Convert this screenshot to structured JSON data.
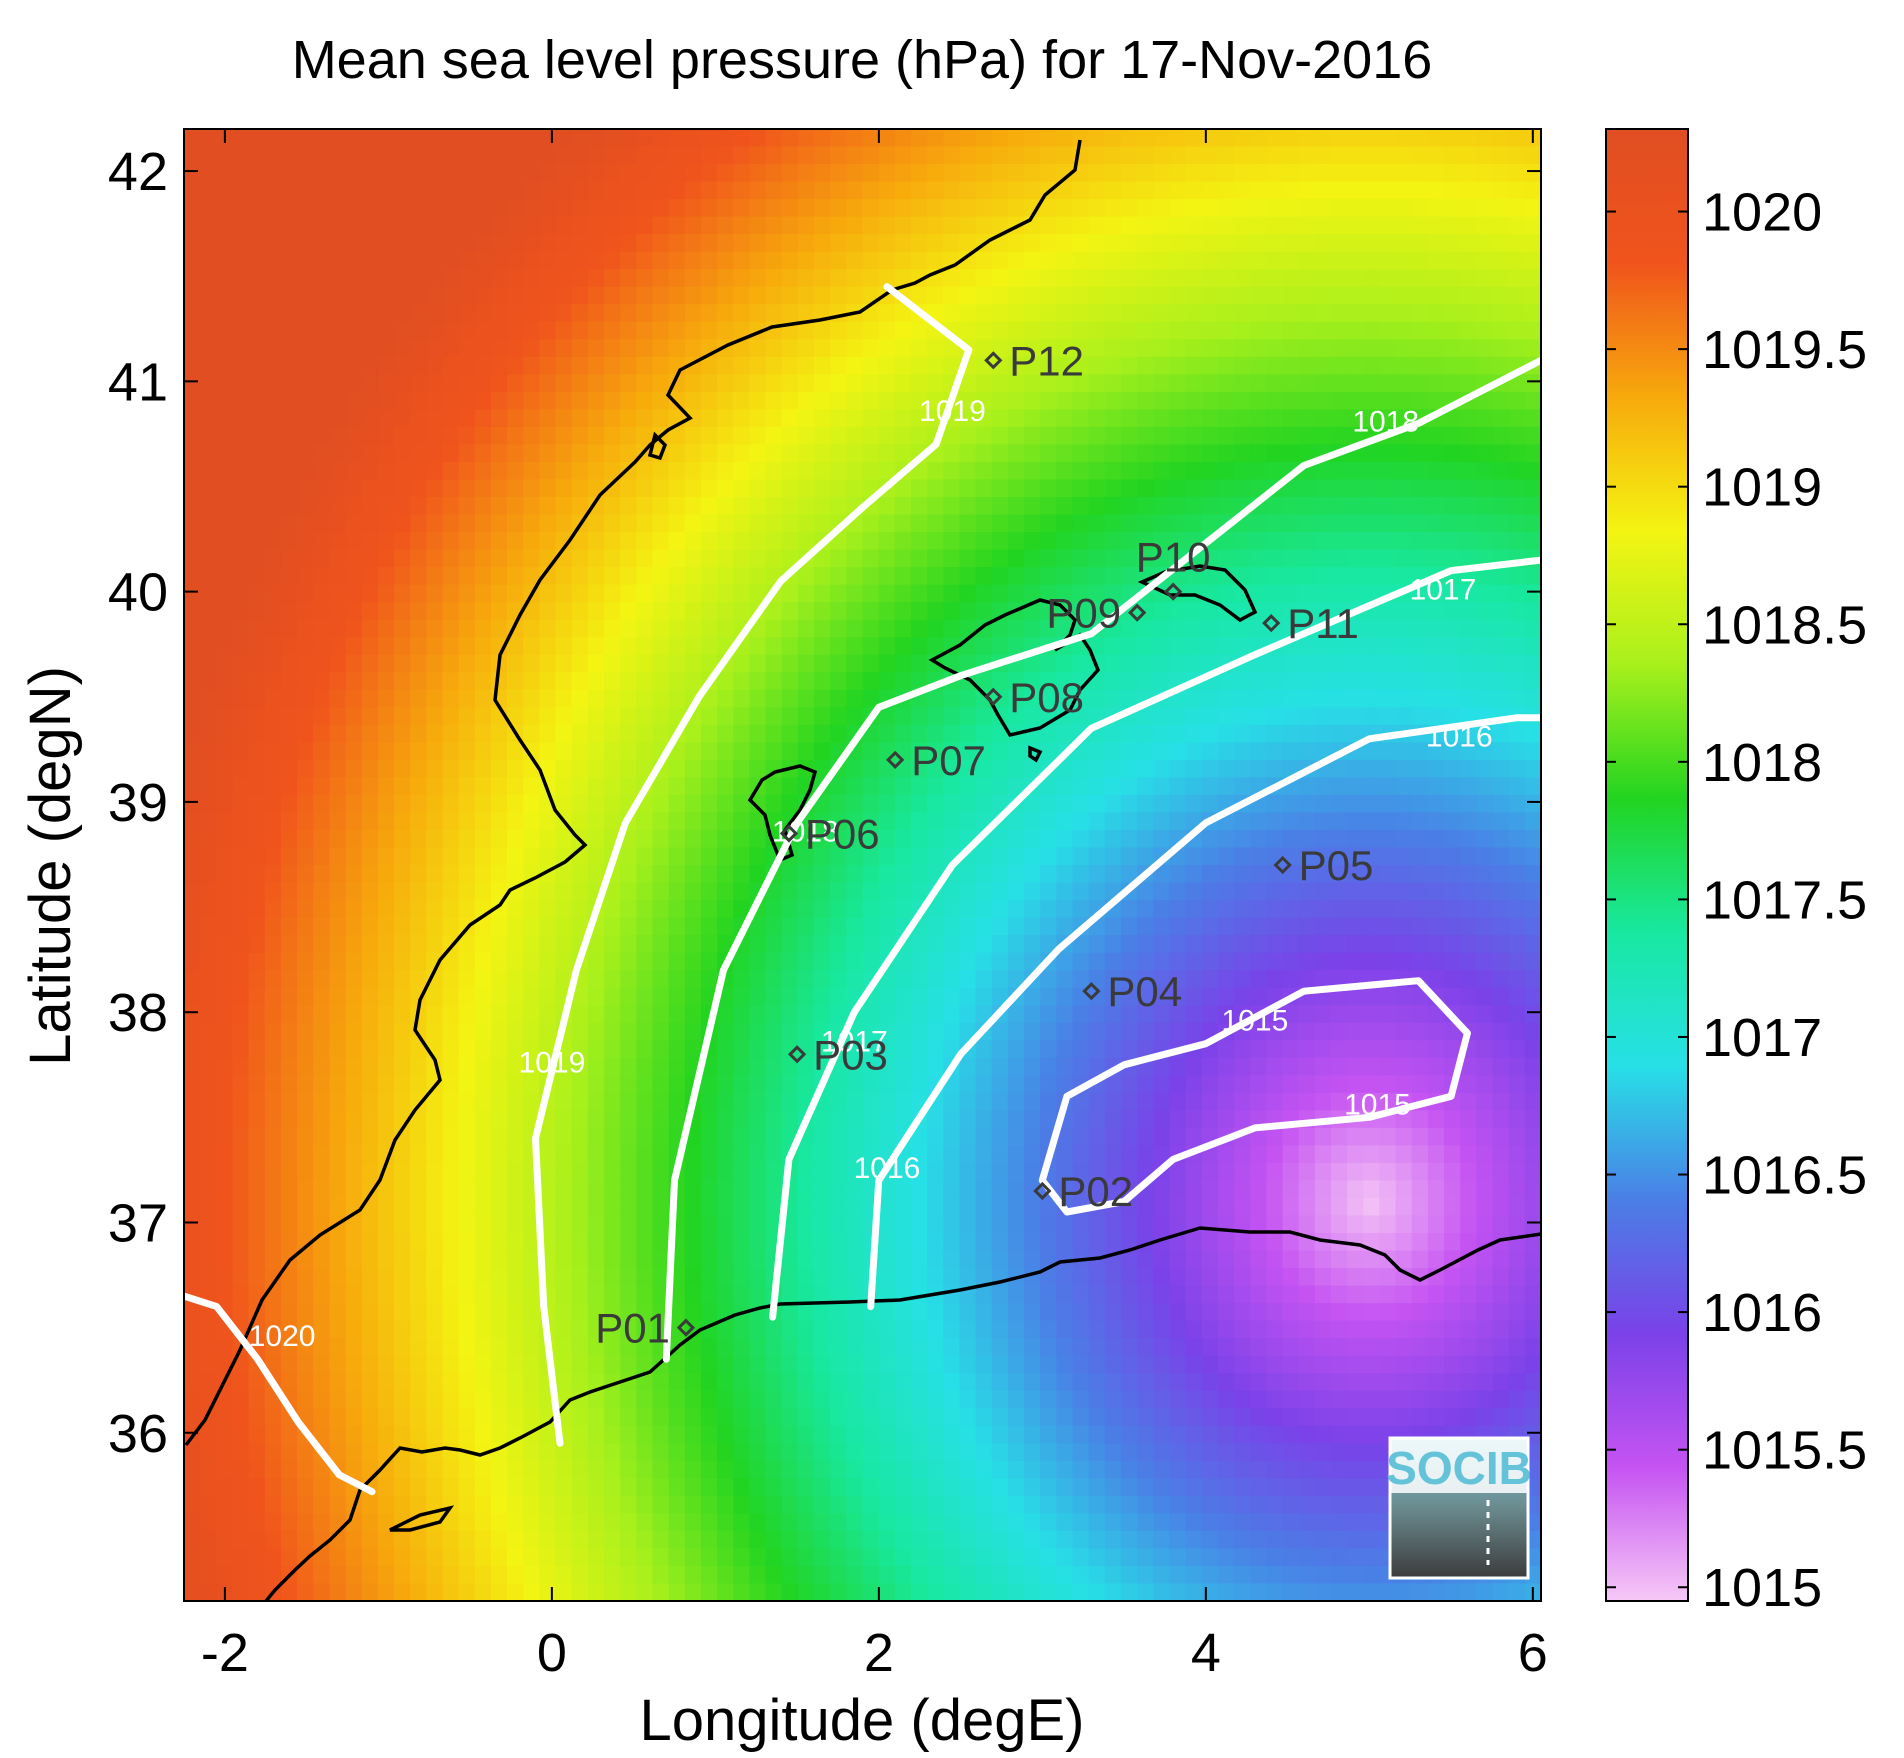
{
  "chart_data": {
    "type": "heatmap",
    "title": "Mean sea level pressure (hPa) for 17-Nov-2016",
    "xlabel": "Longitude (degE)",
    "ylabel": "Latitude (degN)",
    "xlim": [
      -2.25,
      6.05
    ],
    "ylim": [
      35.2,
      42.2
    ],
    "x_ticks": [
      -2,
      0,
      2,
      4,
      6
    ],
    "x_tick_labels": [
      "-2",
      "0",
      "2",
      "4",
      "6"
    ],
    "y_ticks": [
      36,
      37,
      38,
      39,
      40,
      41,
      42
    ],
    "y_tick_labels": [
      "36",
      "37",
      "38",
      "39",
      "40",
      "41",
      "42"
    ],
    "colorbar": {
      "min": 1014.95,
      "max": 1020.3,
      "ticks": [
        1015,
        1015.5,
        1016,
        1016.5,
        1017,
        1017.5,
        1018,
        1018.5,
        1019,
        1019.5,
        1020
      ],
      "tick_labels": [
        "1015",
        "1015.5",
        "1016",
        "1016.5",
        "1017",
        "1017.5",
        "1018",
        "1018.5",
        "1019",
        "1019.5",
        "1020"
      ],
      "colors": [
        "#f6c8f6",
        "#c553f2",
        "#7a42e8",
        "#4a7fe6",
        "#27e0e6",
        "#18e8a0",
        "#22d420",
        "#a8f01c",
        "#f4f412",
        "#f7a90c",
        "#f0541c",
        "#e04e22"
      ]
    },
    "contours": [
      {
        "level": 1020,
        "label": "1020",
        "points": [
          [
            -2.25,
            36.65
          ],
          [
            -2.05,
            36.6
          ],
          [
            -1.8,
            36.35
          ],
          [
            -1.55,
            36.05
          ],
          [
            -1.3,
            35.8
          ],
          [
            -1.1,
            35.72
          ]
        ],
        "label_at": [
          -1.65,
          36.45
        ]
      },
      {
        "level": 1019,
        "label": "1019",
        "points": [
          [
            2.05,
            41.45
          ],
          [
            2.3,
            41.3
          ],
          [
            2.55,
            41.15
          ],
          [
            2.35,
            40.7
          ],
          [
            1.9,
            40.4
          ],
          [
            1.4,
            40.05
          ],
          [
            0.9,
            39.5
          ],
          [
            0.45,
            38.9
          ],
          [
            0.15,
            38.2
          ],
          [
            -0.1,
            37.4
          ],
          [
            -0.05,
            36.6
          ],
          [
            0.05,
            35.95
          ]
        ],
        "label_at": [
          0.0,
          37.75
        ],
        "label2_at": [
          2.45,
          40.85
        ]
      },
      {
        "level": 1018,
        "label": "1018",
        "points": [
          [
            0.7,
            36.35
          ],
          [
            0.75,
            37.2
          ],
          [
            1.05,
            38.2
          ],
          [
            1.5,
            38.9
          ],
          [
            2.0,
            39.45
          ],
          [
            2.5,
            39.6
          ],
          [
            3.3,
            39.8
          ],
          [
            3.95,
            40.2
          ],
          [
            4.6,
            40.6
          ],
          [
            5.3,
            40.8
          ],
          [
            6.05,
            41.1
          ]
        ],
        "label_at": [
          5.1,
          40.8
        ],
        "label2_at": [
          1.55,
          38.85
        ]
      },
      {
        "level": 1017,
        "label": "1017",
        "points": [
          [
            1.35,
            36.55
          ],
          [
            1.45,
            37.3
          ],
          [
            1.85,
            38.0
          ],
          [
            2.45,
            38.7
          ],
          [
            3.3,
            39.35
          ],
          [
            4.3,
            39.7
          ],
          [
            5.5,
            40.1
          ],
          [
            6.05,
            40.15
          ]
        ],
        "label_at": [
          5.45,
          40.0
        ],
        "label2_at": [
          1.85,
          37.85
        ]
      },
      {
        "level": 1016,
        "label": "1016",
        "points": [
          [
            1.95,
            36.6
          ],
          [
            2.0,
            37.2
          ],
          [
            2.5,
            37.8
          ],
          [
            3.1,
            38.3
          ],
          [
            4.0,
            38.9
          ],
          [
            5.0,
            39.3
          ],
          [
            5.9,
            39.4
          ],
          [
            6.05,
            39.4
          ]
        ],
        "label_at": [
          5.55,
          39.3
        ],
        "label2_at": [
          2.05,
          37.25
        ]
      },
      {
        "level": 1015,
        "label": "1015",
        "points": [
          [
            3.15,
            37.05
          ],
          [
            3.0,
            37.2
          ],
          [
            3.15,
            37.6
          ],
          [
            3.5,
            37.75
          ],
          [
            4.0,
            37.85
          ],
          [
            4.6,
            38.1
          ],
          [
            5.3,
            38.15
          ],
          [
            5.6,
            37.9
          ],
          [
            5.5,
            37.6
          ],
          [
            5.0,
            37.5
          ],
          [
            4.3,
            37.45
          ],
          [
            3.8,
            37.3
          ],
          [
            3.5,
            37.1
          ],
          [
            3.15,
            37.05
          ]
        ],
        "label_at": [
          4.3,
          37.95
        ],
        "label2_at": [
          5.05,
          37.55
        ]
      }
    ],
    "stations": [
      {
        "name": "P01",
        "lon": 0.82,
        "lat": 36.5,
        "label_side": "left"
      },
      {
        "name": "P02",
        "lon": 3.0,
        "lat": 37.15,
        "label_side": "right"
      },
      {
        "name": "P03",
        "lon": 1.5,
        "lat": 37.8,
        "label_side": "right"
      },
      {
        "name": "P04",
        "lon": 3.3,
        "lat": 38.1,
        "label_side": "right"
      },
      {
        "name": "P05",
        "lon": 4.47,
        "lat": 38.7,
        "label_side": "right"
      },
      {
        "name": "P06",
        "lon": 1.45,
        "lat": 38.85,
        "label_side": "right"
      },
      {
        "name": "P07",
        "lon": 2.1,
        "lat": 39.2,
        "label_side": "right"
      },
      {
        "name": "P08",
        "lon": 2.7,
        "lat": 39.5,
        "label_side": "right"
      },
      {
        "name": "P09",
        "lon": 3.58,
        "lat": 39.9,
        "label_side": "left"
      },
      {
        "name": "P10",
        "lon": 3.8,
        "lat": 40.0,
        "label_side": "above"
      },
      {
        "name": "P11",
        "lon": 4.4,
        "lat": 39.85,
        "label_side": "right"
      },
      {
        "name": "P12",
        "lon": 2.7,
        "lat": 41.1,
        "label_side": "right"
      }
    ]
  },
  "logo": {
    "text": "SOCIB"
  }
}
